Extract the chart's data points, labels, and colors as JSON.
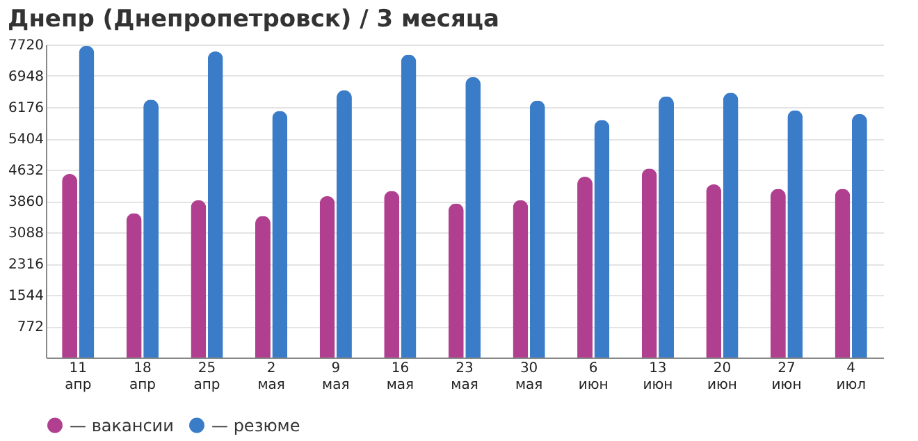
{
  "chart_data": {
    "type": "bar",
    "title": "Днепр (Днепропетровск) / 3 месяца",
    "categories": [
      "11 апр",
      "18 апр",
      "25 апр",
      "2 мая",
      "9 мая",
      "16 мая",
      "23 мая",
      "30 мая",
      "6 июн",
      "13 июн",
      "20 июн",
      "27 июн",
      "4 июл"
    ],
    "series": [
      {
        "name": "— вакансии",
        "color": "#b0408f",
        "values": [
          4530,
          3560,
          3880,
          3490,
          3980,
          4110,
          3800,
          3880,
          4460,
          4660,
          4270,
          4160,
          4160
        ]
      },
      {
        "name": "— резюме",
        "color": "#3a7cc8",
        "values": [
          7690,
          6360,
          7550,
          6080,
          6590,
          7470,
          6920,
          6340,
          5860,
          6440,
          6530,
          6100,
          6010
        ]
      }
    ],
    "ylim": [
      0,
      7720
    ],
    "yticks": [
      772,
      1544,
      2316,
      3088,
      3860,
      4632,
      5404,
      6176,
      6948,
      7720
    ],
    "grid": "y",
    "legend": "bottom left"
  }
}
